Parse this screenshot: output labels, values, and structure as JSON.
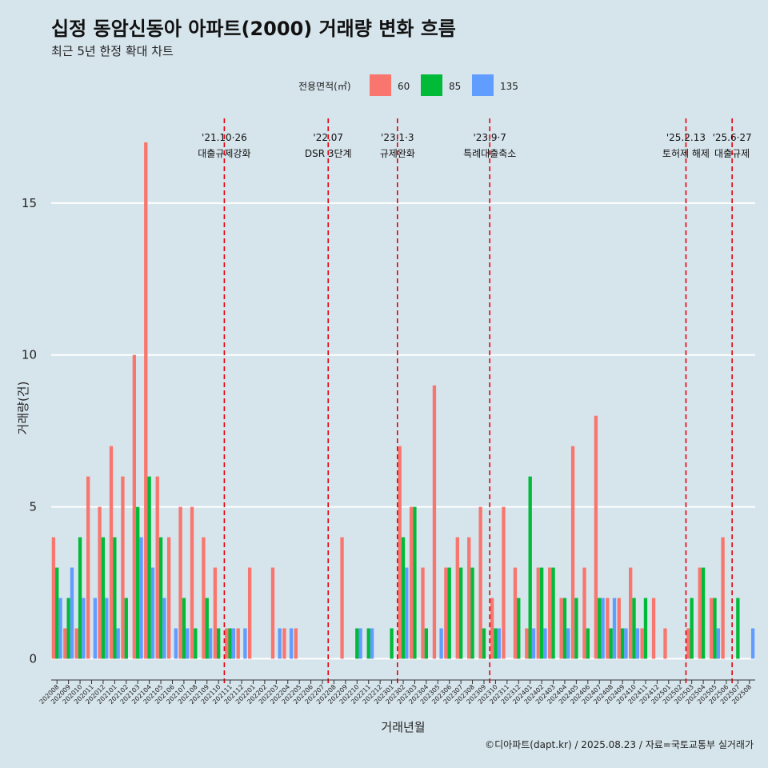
{
  "chart_data": {
    "type": "bar",
    "title": "십정 동암신동아 아파트(2000) 거래량 변화 흐름",
    "subtitle": "최근 5년 한정 확대 차트",
    "xlabel": "거래년월",
    "ylabel": "거래량(건)",
    "caption": "©디아파트(dapt.kr) / 2025.08.23 / 자료=국토교통부 실거래가",
    "ylim": [
      -0.7,
      18.0
    ],
    "yticks": [
      0,
      5,
      10,
      15
    ],
    "grid": true,
    "legend": {
      "title": "전용면적(㎡)",
      "position": "top"
    },
    "colors": [
      "#f8766d",
      "#00ba38",
      "#619cff"
    ],
    "categories": [
      "202008",
      "202009",
      "202010",
      "202011",
      "202012",
      "202101",
      "202102",
      "202103",
      "202104",
      "202105",
      "202106",
      "202107",
      "202108",
      "202109",
      "202110",
      "202111",
      "202112",
      "202201",
      "202202",
      "202203",
      "202204",
      "202205",
      "202206",
      "202207",
      "202208",
      "202209",
      "202210",
      "202211",
      "202212",
      "202301",
      "202302",
      "202303",
      "202304",
      "202305",
      "202306",
      "202307",
      "202308",
      "202309",
      "202310",
      "202311",
      "202312",
      "202401",
      "202402",
      "202403",
      "202404",
      "202405",
      "202406",
      "202407",
      "202408",
      "202409",
      "202410",
      "202411",
      "202412",
      "202501",
      "202502",
      "202503",
      "202504",
      "202505",
      "202506",
      "202507",
      "202508"
    ],
    "series": [
      {
        "name": "60",
        "values": [
          4,
          1,
          1,
          6,
          5,
          7,
          6,
          10,
          17,
          6,
          4,
          5,
          5,
          4,
          3,
          1,
          1,
          3,
          0,
          3,
          1,
          1,
          0,
          0,
          0,
          4,
          0,
          0,
          0,
          0,
          7,
          5,
          3,
          9,
          3,
          4,
          4,
          5,
          2,
          5,
          3,
          1,
          3,
          3,
          2,
          7,
          3,
          8,
          2,
          2,
          3,
          1,
          2,
          1,
          0,
          1,
          3,
          2,
          4,
          0,
          0
        ]
      },
      {
        "name": "85",
        "values": [
          3,
          2,
          4,
          0,
          4,
          4,
          2,
          5,
          6,
          4,
          0,
          2,
          1,
          2,
          1,
          1,
          0,
          0,
          0,
          0,
          0,
          0,
          0,
          0,
          0,
          0,
          1,
          1,
          0,
          1,
          4,
          5,
          1,
          0,
          3,
          3,
          3,
          1,
          1,
          0,
          2,
          6,
          3,
          3,
          2,
          2,
          1,
          2,
          1,
          1,
          2,
          2,
          0,
          0,
          0,
          2,
          3,
          2,
          0,
          2,
          0
        ]
      },
      {
        "name": "135",
        "values": [
          2,
          3,
          2,
          2,
          2,
          1,
          0,
          4,
          3,
          2,
          1,
          1,
          0,
          1,
          0,
          1,
          1,
          0,
          0,
          1,
          1,
          0,
          0,
          0,
          0,
          0,
          1,
          1,
          0,
          0,
          3,
          0,
          0,
          1,
          0,
          0,
          0,
          0,
          1,
          0,
          0,
          1,
          1,
          0,
          1,
          0,
          0,
          2,
          2,
          1,
          1,
          0,
          0,
          0,
          0,
          0,
          0,
          1,
          0,
          0,
          1
        ]
      }
    ],
    "events": [
      {
        "line1": "'21.10·26",
        "line2": "대출규제강화",
        "x_index": 14.5,
        "label_size": "normal"
      },
      {
        "line1": "'22.07",
        "line2": "DSR 3단계",
        "x_index": 23.5,
        "label_size": "normal"
      },
      {
        "line1": "'23.1·3",
        "line2": "규제완화",
        "x_index": 29.5,
        "label_size": "normal"
      },
      {
        "line1": "'23.9·7",
        "line2": "특례대출축소",
        "x_index": 37.5,
        "label_size": "normal"
      },
      {
        "line1": "'25.2.13",
        "line2": "토허제 해제",
        "x_index": 54.5,
        "label_size": "small"
      },
      {
        "line1": "'25.6·27",
        "line2": "대출규제",
        "x_index": 58.5,
        "label_size": "normal"
      }
    ]
  }
}
